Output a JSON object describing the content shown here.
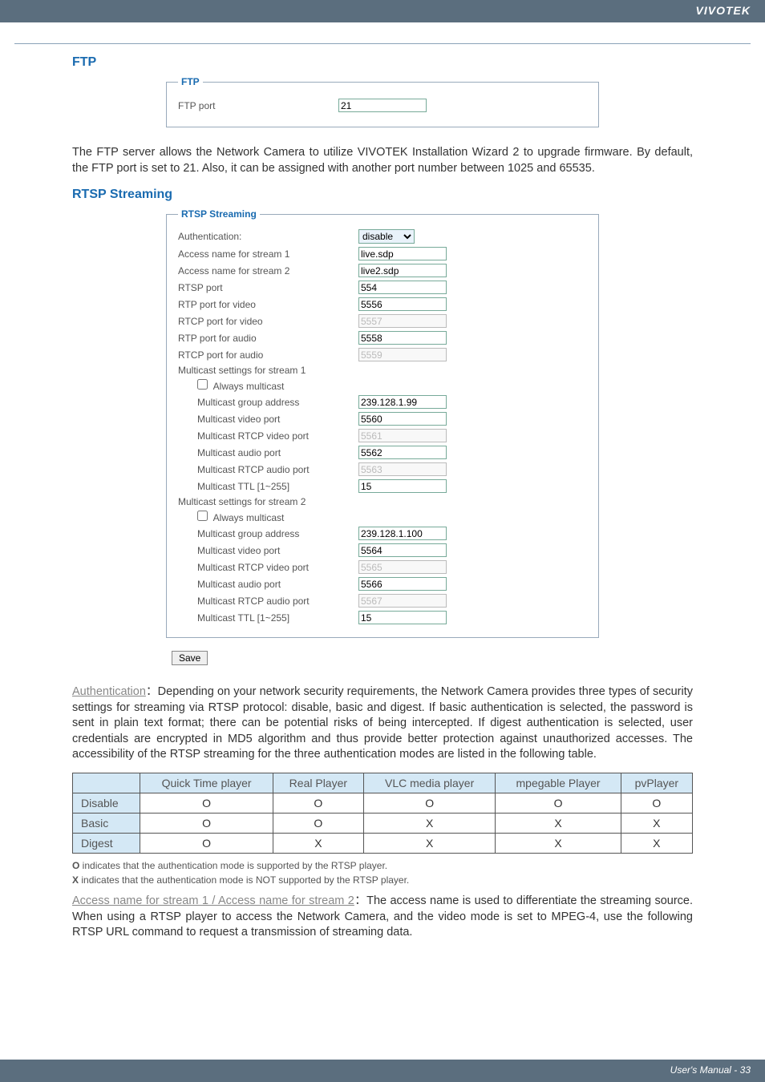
{
  "header": {
    "brand": "VIVOTEK"
  },
  "ftp": {
    "title": "FTP",
    "legend": "FTP",
    "portLabel": "FTP port",
    "portValue": "21",
    "desc": "The FTP server allows the Network Camera to utilize VIVOTEK Installation Wizard 2 to upgrade firmware. By default, the FTP port is set to 21. Also, it can be assigned with another port number between 1025 and 65535."
  },
  "rtsp": {
    "title": "RTSP Streaming",
    "legend": "RTSP Streaming",
    "authLabel": "Authentication:",
    "authValue": "disable",
    "access1Label": "Access name for stream 1",
    "access1Value": "live.sdp",
    "access2Label": "Access name for stream 2",
    "access2Value": "live2.sdp",
    "rtspPortLabel": "RTSP port",
    "rtspPortValue": "554",
    "rtpVideoLabel": "RTP port for video",
    "rtpVideoValue": "5556",
    "rtcpVideoLabel": "RTCP port for video",
    "rtcpVideoValue": "5557",
    "rtpAudioLabel": "RTP port for audio",
    "rtpAudioValue": "5558",
    "rtcpAudioLabel": "RTCP port for audio",
    "rtcpAudioValue": "5559",
    "mc1Header": "Multicast settings for stream 1",
    "alwaysMcLabel": "Always multicast",
    "mcGroupLabel": "Multicast group address",
    "mcVideoLabel": "Multicast video port",
    "mcRtcpVideoLabel": "Multicast RTCP video port",
    "mcAudioLabel": "Multicast audio port",
    "mcRtcpAudioLabel": "Multicast RTCP audio port",
    "mcTtlLabel": "Multicast TTL [1~255]",
    "mc1": {
      "group": "239.128.1.99",
      "video": "5560",
      "rtcpVideo": "5561",
      "audio": "5562",
      "rtcpAudio": "5563",
      "ttl": "15"
    },
    "mc2Header": "Multicast settings for stream 2",
    "mc2": {
      "group": "239.128.1.100",
      "video": "5564",
      "rtcpVideo": "5565",
      "audio": "5566",
      "rtcpAudio": "5567",
      "ttl": "15"
    },
    "saveLabel": "Save"
  },
  "authPara": {
    "label": "Authentication",
    "text": "：Depending on your network security requirements, the Network Camera provides three types of security settings for streaming via RTSP protocol: disable, basic and digest. If basic authentication is selected, the password is sent in plain text format; there can be potential risks of being intercepted. If digest authentication is selected, user credentials are encrypted in MD5 algorithm and thus provide better protection against unauthorized accesses. The accessibility of the RTSP streaming for the three authentication modes are listed in the following table."
  },
  "table": {
    "headers": [
      "",
      "Quick Time player",
      "Real Player",
      "VLC media player",
      "mpegable Player",
      "pvPlayer"
    ],
    "rows": [
      {
        "name": "Disable",
        "cells": [
          "O",
          "O",
          "O",
          "O",
          "O"
        ]
      },
      {
        "name": "Basic",
        "cells": [
          "O",
          "O",
          "X",
          "X",
          "X"
        ]
      },
      {
        "name": "Digest",
        "cells": [
          "O",
          "X",
          "X",
          "X",
          "X"
        ]
      }
    ]
  },
  "foot1": {
    "sym": "O",
    "text": " indicates that the authentication mode is supported by the RTSP player."
  },
  "foot2": {
    "sym": "X",
    "text": " indicates that the authentication mode is NOT supported by the RTSP player."
  },
  "accessPara": {
    "label": "Access name for stream 1 / Access name for stream 2",
    "text": "：The access name is used to differentiate the streaming source. When using a RTSP player to access the Network Camera, and the video mode is set to MPEG-4, use the following RTSP URL command to request a transmission of streaming data."
  },
  "footer": {
    "text": "User's Manual - 33"
  }
}
